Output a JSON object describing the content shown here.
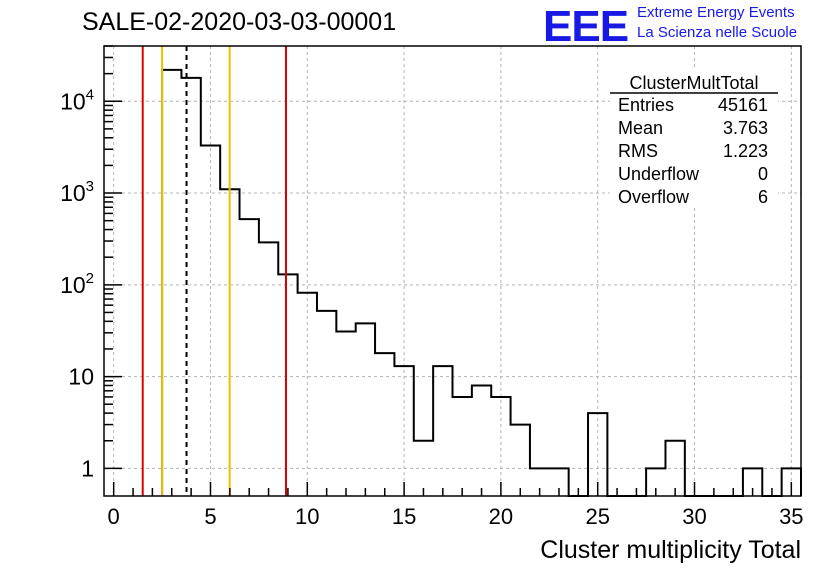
{
  "header": {
    "title": "SALE-02-2020-03-03-00001",
    "logo_text": "EEE",
    "logo_line1": "Extreme Energy Events",
    "logo_line2": "La Scienza nelle Scuole",
    "logo_color": "#1919e6"
  },
  "stats_box": {
    "title": "ClusterMultTotal",
    "rows": [
      {
        "label": "Entries",
        "value": "45161"
      },
      {
        "label": "Mean",
        "value": "3.763"
      },
      {
        "label": "RMS",
        "value": "1.223"
      },
      {
        "label": "Underflow",
        "value": "0"
      },
      {
        "label": "Overflow",
        "value": "6"
      }
    ]
  },
  "chart_data": {
    "type": "histogram",
    "title": "SALE-02-2020-03-03-00001",
    "xlabel": "Cluster multiplicity Total",
    "ylabel": "",
    "xlim": [
      -0.5,
      35.5
    ],
    "ylim": [
      0.5,
      40000
    ],
    "y_scale": "log",
    "grid": true,
    "x_ticks": [
      0,
      5,
      10,
      15,
      20,
      25,
      30,
      35
    ],
    "y_ticks": [
      {
        "value": 1,
        "label": "1"
      },
      {
        "value": 10,
        "label": "10"
      },
      {
        "value": 100,
        "label": "10^2"
      },
      {
        "value": 1000,
        "label": "10^3"
      },
      {
        "value": 10000,
        "label": "10^4"
      }
    ],
    "bin_edges_start": 2.5,
    "bin_width": 1,
    "counts": [
      22000,
      18000,
      3300,
      1100,
      520,
      290,
      130,
      82,
      52,
      31,
      38,
      18,
      13,
      2,
      13,
      6,
      8,
      6,
      3,
      1,
      1,
      0,
      4,
      0,
      0,
      1,
      2,
      0,
      0,
      0,
      1,
      0,
      1
    ],
    "vertical_lines": [
      {
        "x": 1.5,
        "color": "#dd0000",
        "style": "solid"
      },
      {
        "x": 2.5,
        "color": "#f0c000",
        "style": "solid"
      },
      {
        "x": 3.763,
        "color": "#000000",
        "style": "dashed"
      },
      {
        "x": 5.99,
        "color": "#f0c000",
        "style": "solid"
      },
      {
        "x": 8.9,
        "color": "#dd0000",
        "style": "solid"
      }
    ]
  }
}
